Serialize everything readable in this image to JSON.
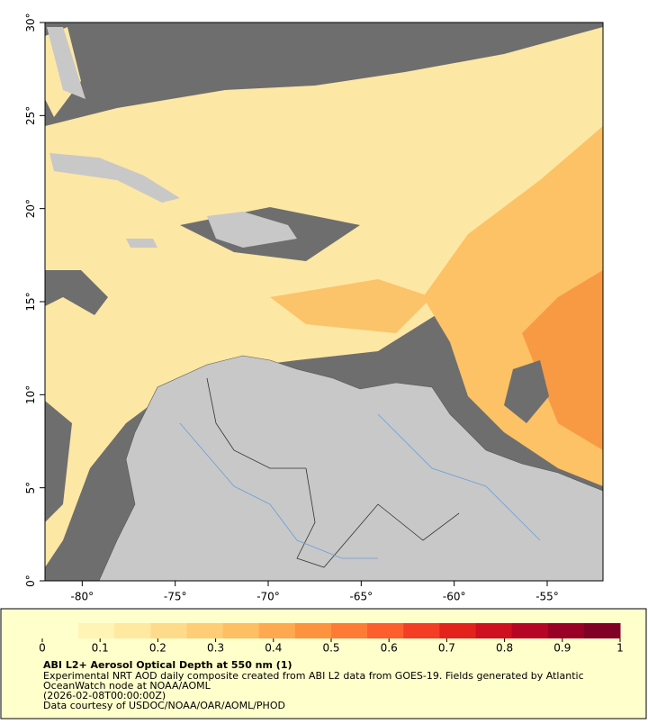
{
  "map": {
    "xlim": [
      -82,
      -52
    ],
    "ylim": [
      0,
      30
    ],
    "xticks": [
      {
        "value": -80,
        "label": "-80°"
      },
      {
        "value": -75,
        "label": "-75°"
      },
      {
        "value": -70,
        "label": "-70°"
      },
      {
        "value": -65,
        "label": "-65°"
      },
      {
        "value": -60,
        "label": "-60°"
      },
      {
        "value": -55,
        "label": "-55°"
      }
    ],
    "yticks": [
      {
        "value": 0,
        "label": "0°"
      },
      {
        "value": 5,
        "label": "5°"
      },
      {
        "value": 10,
        "label": "10°"
      },
      {
        "value": 15,
        "label": "15°"
      },
      {
        "value": 20,
        "label": "20°"
      },
      {
        "value": 25,
        "label": "25°"
      },
      {
        "value": 30,
        "label": "30°"
      }
    ]
  },
  "colorbar": {
    "range": [
      0,
      1
    ],
    "ticks": [
      0,
      0.1,
      0.2,
      0.3,
      0.4,
      0.5,
      0.6,
      0.7,
      0.8,
      0.9,
      1
    ],
    "colors": [
      "#ffffcc",
      "#fff3b5",
      "#ffe8a0",
      "#fedb8a",
      "#fecd76",
      "#febe64",
      "#fea94f",
      "#fd933f",
      "#fd7b35",
      "#fc5e2d",
      "#f43d25",
      "#e3221c",
      "#cf1020",
      "#b60626",
      "#990026",
      "#800026"
    ],
    "title": "ABI L2+ Aerosol Optical Depth at 550 nm (1)",
    "notes": [
      "Experimental NRT AOD daily composite created from ABI L2 data from GOES-19. Fields generated by Atlantic",
      "OceanWatch node at NOAA/AOML",
      "(2026-02-08T00:00:00Z)",
      "Data courtesy of USDOC/NOAA/OAR/AOML/PHOD"
    ]
  }
}
